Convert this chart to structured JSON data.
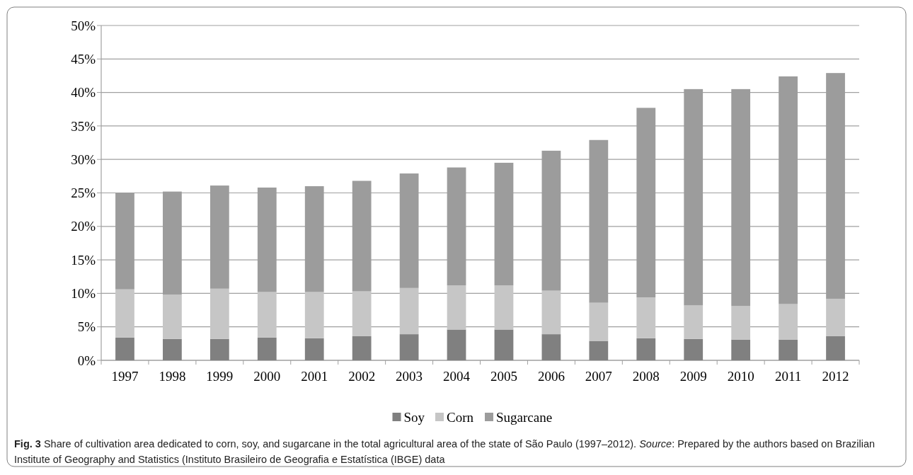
{
  "chart_data": {
    "type": "bar",
    "stacked": true,
    "categories": [
      "1997",
      "1998",
      "1999",
      "2000",
      "2001",
      "2002",
      "2003",
      "2004",
      "2005",
      "2006",
      "2007",
      "2008",
      "2009",
      "2010",
      "2011",
      "2012"
    ],
    "series": [
      {
        "name": "Soy",
        "color": "#808080",
        "values": [
          3.4,
          3.2,
          3.2,
          3.4,
          3.3,
          3.6,
          3.9,
          4.6,
          4.6,
          3.9,
          2.9,
          3.3,
          3.2,
          3.1,
          3.1,
          3.6
        ]
      },
      {
        "name": "Corn",
        "color": "#c6c6c6",
        "values": [
          7.2,
          6.6,
          7.5,
          6.8,
          6.9,
          6.7,
          6.9,
          6.6,
          6.6,
          6.5,
          5.7,
          6.1,
          5.0,
          5.0,
          5.3,
          5.6
        ]
      },
      {
        "name": "Sugarcane",
        "color": "#9c9c9c",
        "values": [
          14.4,
          15.4,
          15.4,
          15.6,
          15.8,
          16.5,
          17.1,
          17.6,
          18.3,
          20.9,
          24.3,
          28.3,
          32.3,
          32.4,
          34.0,
          33.7
        ]
      }
    ],
    "ylim": [
      0,
      50
    ],
    "yticks": [
      {
        "value": 0,
        "label": "0%"
      },
      {
        "value": 5,
        "label": "5%"
      },
      {
        "value": 10,
        "label": "10%"
      },
      {
        "value": 15,
        "label": "15%"
      },
      {
        "value": 20,
        "label": "20%"
      },
      {
        "value": 25,
        "label": "25%"
      },
      {
        "value": 30,
        "label": "30%"
      },
      {
        "value": 35,
        "label": "35%"
      },
      {
        "value": 40,
        "label": "40%"
      },
      {
        "value": 45,
        "label": "45%"
      },
      {
        "value": 50,
        "label": "50%"
      }
    ],
    "grid": "y",
    "legend": "bottom",
    "annotations": [
      "Fig. 3",
      "Share of cultivation area dedicated to corn, soy, and sugarcane in the total agricultural area of the state of São Paulo (1997–2012).",
      "Source: Prepared by the authors based on Brazilian Institute of Geography and Statistics (Instituto Brasileiro de Geografia e Estatística (IBGE) data"
    ]
  }
}
